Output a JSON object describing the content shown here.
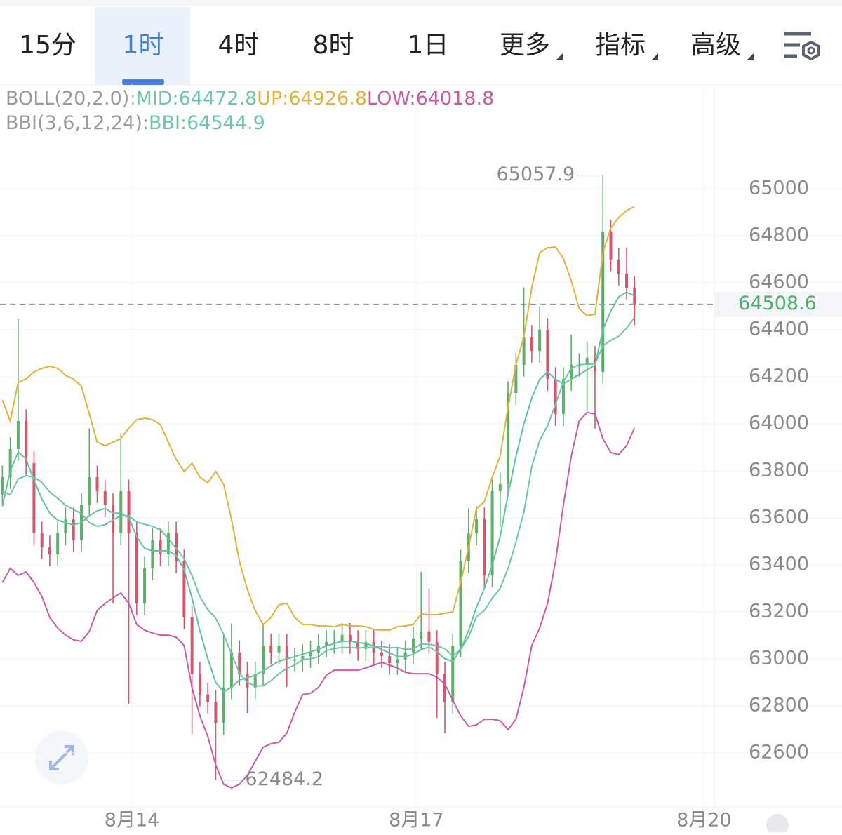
{
  "tabs": [
    {
      "label": "15分"
    },
    {
      "label": "1时",
      "selected": true
    },
    {
      "label": "4时"
    },
    {
      "label": "8时"
    },
    {
      "label": "1日"
    },
    {
      "label": "更多",
      "dropdown": true
    },
    {
      "label": "指标",
      "dropdown": true
    },
    {
      "label": "高级",
      "dropdown": true
    }
  ],
  "indicators": [
    [
      {
        "text": "BOLL(20,2.0):",
        "color": "#9a9a9a"
      },
      {
        "text": "MID:64472.8",
        "color": "#6cc7a8"
      },
      {
        "text": "UP:64926.8",
        "color": "#e3b23c"
      },
      {
        "text": "LOW:64018.8",
        "color": "#cc5aa6"
      }
    ],
    [
      {
        "text": "BBI(3,6,12,24):",
        "color": "#9a9a9a"
      },
      {
        "text": "BBI:64544.9",
        "color": "#6cc7a8"
      }
    ]
  ],
  "chart_data": {
    "type": "candlestick",
    "up_color": "#5fae6a",
    "down_color": "#d6566c",
    "grid": true,
    "xlim": [
      -0.3,
      90.1
    ],
    "xticks": [
      {
        "value": 16.4,
        "label": "8月14"
      },
      {
        "value": 52.4,
        "label": "8月17"
      },
      {
        "value": 88.8,
        "label": "8月20"
      }
    ],
    "ylim": [
      62370,
      65445
    ],
    "yticks": [
      62600,
      62800,
      63000,
      63200,
      63400,
      63600,
      63800,
      64000,
      64200,
      64400,
      64600,
      64800,
      65000
    ],
    "open": [
      63700,
      63773,
      63893,
      64012,
      63833,
      63534,
      63475,
      63445,
      63534,
      63594,
      63505,
      63654,
      63773,
      63713,
      63654,
      63534,
      63713,
      63534,
      63236,
      63385,
      63505,
      63445,
      63534,
      63415,
      63176,
      62937,
      62848,
      62818,
      62728,
      62878,
      63027,
      62937,
      62878,
      62937,
      63057,
      63027,
      63057,
      62997,
      62997,
      63012,
      63027,
      63057,
      63072,
      63072,
      63102,
      63072,
      63042,
      63072,
      63027,
      63012,
      62982,
      62997,
      63027,
      63087,
      63117,
      63072,
      62937,
      62818,
      63057,
      63415,
      63534,
      63594,
      63355,
      63713,
      63743,
      64131,
      64251,
      64370,
      64310,
      64400,
      64191,
      64042,
      64191,
      64251,
      64251,
      64281,
      64221,
      64818,
      64699,
      64639,
      64579
    ],
    "high": [
      63823,
      63943,
      64445,
      64062,
      63883,
      63584,
      63525,
      63584,
      63644,
      63644,
      63704,
      63980,
      63823,
      63763,
      63704,
      63960,
      63763,
      63584,
      63435,
      63555,
      63555,
      63584,
      63584,
      63465,
      63226,
      62987,
      62898,
      62868,
      63100,
      63150,
      63077,
      62987,
      62987,
      63150,
      63107,
      63107,
      63107,
      63047,
      63062,
      63077,
      63107,
      63122,
      63122,
      63152,
      63152,
      63122,
      63122,
      63122,
      63077,
      63062,
      63047,
      63077,
      63137,
      63370,
      63300,
      63122,
      62987,
      63107,
      63465,
      63640,
      63650,
      63644,
      63763,
      63793,
      64181,
      64301,
      64580,
      64420,
      64500,
      64450,
      64241,
      64241,
      64380,
      64301,
      64350,
      64331,
      65057.9,
      64868,
      64749,
      64750,
      64629
    ],
    "low": [
      63650,
      63723,
      63843,
      63783,
      63484,
      63425,
      63395,
      63395,
      63484,
      63455,
      63455,
      63604,
      63663,
      63604,
      63236,
      63484,
      62809,
      63186,
      63186,
      63335,
      63395,
      63395,
      63365,
      63126,
      62680,
      62798,
      62768,
      62484.2,
      62678,
      62828,
      62887,
      62770,
      62828,
      62887,
      62977,
      62977,
      62880,
      62947,
      62947,
      62962,
      62977,
      63007,
      63022,
      63022,
      63022,
      62992,
      62992,
      62977,
      62962,
      62932,
      62932,
      62947,
      62977,
      63037,
      63022,
      62750,
      62684,
      62768,
      63007,
      63365,
      63484,
      63305,
      63305,
      63560,
      63693,
      64081,
      64201,
      64260,
      64260,
      64141,
      63992,
      63992,
      64141,
      64201,
      64050,
      63980,
      64171,
      64649,
      64589,
      64529,
      64420
    ],
    "close": [
      63773,
      63893,
      64012,
      63833,
      63534,
      63475,
      63445,
      63534,
      63594,
      63505,
      63654,
      63773,
      63713,
      63654,
      63534,
      63713,
      63534,
      63236,
      63385,
      63505,
      63445,
      63534,
      63415,
      63176,
      62937,
      62848,
      62818,
      62728,
      62878,
      63027,
      62937,
      62878,
      62937,
      63057,
      63027,
      63057,
      62997,
      62997,
      63012,
      63027,
      63057,
      63072,
      63072,
      63102,
      63072,
      63042,
      63072,
      63027,
      63012,
      62982,
      62997,
      63027,
      63087,
      63117,
      63072,
      62937,
      62818,
      63057,
      63415,
      63534,
      63594,
      63355,
      63713,
      63743,
      64131,
      64251,
      64370,
      64310,
      64400,
      64191,
      64042,
      64191,
      64251,
      64251,
      64281,
      64221,
      64818,
      64699,
      64639,
      64579,
      64508.6
    ],
    "series": [
      {
        "name": "UP",
        "color": "#e3b23c",
        "values": [
          64101,
          64012,
          64176,
          64191,
          64221,
          64236,
          64245,
          64236,
          64206,
          64191,
          64161,
          64042,
          63922,
          63907,
          63922,
          63937,
          63982,
          64018,
          64024,
          64018,
          63997,
          63922,
          63848,
          63797,
          63833,
          63773,
          63749,
          63797,
          63743,
          63594,
          63415,
          63296,
          63206,
          63146,
          63176,
          63230,
          63236,
          63176,
          63146,
          63146,
          63140,
          63140,
          63137,
          63146,
          63140,
          63140,
          63137,
          63125,
          63122,
          63122,
          63137,
          63140,
          63146,
          63191,
          63188,
          63188,
          63194,
          63200,
          63325,
          63475,
          63639,
          63669,
          63773,
          63863,
          64072,
          64251,
          64370,
          64579,
          64728,
          64749,
          64752,
          64704,
          64609,
          64490,
          64460,
          64466,
          64728,
          64833,
          64878,
          64907,
          64925
        ]
      },
      {
        "name": "MID",
        "color": "#6cc7a8",
        "values": [
          63713,
          63698,
          63765,
          63780,
          63773,
          63751,
          63710,
          63683,
          63653,
          63636,
          63618,
          63580,
          63564,
          63571,
          63591,
          63609,
          63609,
          63582,
          63573,
          63564,
          63549,
          63511,
          63470,
          63427,
          63355,
          63265,
          63209,
          63173,
          63104,
          63022,
          62940,
          62900,
          62885,
          62885,
          62907,
          62937,
          62960,
          62974,
          62997,
          63000,
          63009,
          63035,
          63044,
          63049,
          63049,
          63046,
          63049,
          63049,
          63053,
          63047,
          63049,
          63041,
          63041,
          63064,
          63062,
          63055,
          63043,
          63012,
          63041,
          63094,
          63179,
          63206,
          63258,
          63300,
          63385,
          63497,
          63624,
          63818,
          63929,
          63992,
          64083,
          64179,
          64236,
          64251,
          64254,
          64254,
          64332,
          64355,
          64373,
          64407,
          64453
        ]
      },
      {
        "name": "LOW",
        "color": "#cc5aa6",
        "values": [
          63325,
          63385,
          63355,
          63370,
          63325,
          63266,
          63176,
          63131,
          63101,
          63081,
          63075,
          63117,
          63206,
          63236,
          63260,
          63281,
          63236,
          63146,
          63122,
          63110,
          63101,
          63101,
          63092,
          63057,
          62878,
          62758,
          62669,
          62549,
          62466,
          62451,
          62466,
          62505,
          62564,
          62624,
          62639,
          62645,
          62684,
          62773,
          62848,
          62854,
          62878,
          62931,
          62952,
          62952,
          62952,
          62952,
          62961,
          62973,
          62985,
          62973,
          62961,
          62943,
          62937,
          62937,
          62937,
          62922,
          62893,
          62824,
          62758,
          62713,
          62719,
          62743,
          62743,
          62737,
          62699,
          62743,
          62878,
          63057,
          63131,
          63236,
          63415,
          63654,
          63863,
          64012,
          64048,
          64042,
          63937,
          63878,
          63869,
          63907,
          63982
        ]
      },
      {
        "name": "BBI",
        "color": "#5fc3a3",
        "values": [
          63650,
          63800,
          63880,
          63850,
          63760,
          63680,
          63620,
          63590,
          63580,
          63570,
          63580,
          63610,
          63630,
          63640,
          63620,
          63620,
          63600,
          63520,
          63470,
          63460,
          63460,
          63460,
          63440,
          63380,
          63260,
          63120,
          63000,
          62900,
          62860,
          62880,
          62910,
          62920,
          62930,
          62950,
          62970,
          62990,
          63000,
          63010,
          63020,
          63030,
          63040,
          63055,
          63065,
          63075,
          63075,
          63070,
          63065,
          63055,
          63040,
          63025,
          63010,
          63010,
          63020,
          63040,
          63050,
          63030,
          63000,
          62990,
          63040,
          63120,
          63220,
          63300,
          63400,
          63520,
          63700,
          63860,
          64000,
          64110,
          64190,
          64220,
          64190,
          64170,
          64190,
          64210,
          64230,
          64250,
          64400,
          64480,
          64540,
          64560,
          64545
        ]
      }
    ]
  }
}
